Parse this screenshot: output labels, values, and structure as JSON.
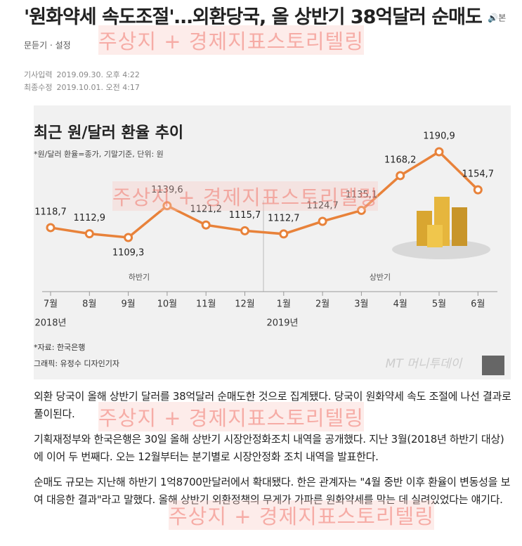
{
  "headline": "'원화약세 속도조절'…외환당국, 올 상반기 38억달러 순매도",
  "tools": {
    "listen": "본문듣기",
    "settings": "설정"
  },
  "meta": [
    {
      "label": "기사입력",
      "value": "2019.09.30. 오후 4:22"
    },
    {
      "label": "최종수정",
      "value": "2019.10.01. 오전 4:17"
    }
  ],
  "chart_data": {
    "type": "line",
    "title": "최근 원/달러 환율 추이",
    "subtitle": "*원/달러 환율=종가, 기말기준, 단위: 원",
    "categories": [
      "7월",
      "8월",
      "9월",
      "10월",
      "11월",
      "12월",
      "1월",
      "2월",
      "3월",
      "4월",
      "5월",
      "6월"
    ],
    "values": [
      1118.7,
      1112.9,
      1109.3,
      1139.6,
      1121.2,
      1115.7,
      1112.7,
      1124.7,
      1135.1,
      1168.2,
      1190.9,
      1154.7
    ],
    "value_labels": [
      "1118,7",
      "1112,9",
      "1109,3",
      "1139,6",
      "1121,2",
      "1115,7",
      "1112,7",
      "1124,7",
      "1135,1",
      "1168,2",
      "1190,9",
      "1154,7"
    ],
    "color": "#e8823a",
    "years": [
      "2018년",
      "2019년"
    ],
    "periods": [
      "하반기",
      "상반기"
    ],
    "source": "*자료: 한국은행",
    "credit": "그래픽: 유정수 디자인기자",
    "logo": "MT 머니투데이"
  },
  "watermark": "주상지 + 경제지표스토리텔링",
  "paragraphs": [
    "외환 당국이 올해 상반기 달러를 38억달러 순매도한 것으로 집계됐다. 당국이 원화약세 속도 조절에 나선 결과로 풀이된다.",
    "기획재정부와 한국은행은 30일 올해 상반기 시장안정화조치 내역을 공개했다. 지난 3월(2018년 하반기 대상)에 이어 두 번째다. 오는 12월부터는 분기별로 시장안정화 조치 내역을 발표한다.",
    "순매도 규모는 지난해 하반기 1억8700만달러에서 확대됐다. 한은 관계자는 \"4월 중반 이후 환율이 변동성을 보여 대응한 결과\"라고 말했다. 올해 상반기 외환정책의 무게가 가파른 원화약세를 막는 데 실려있었다는 얘기다."
  ]
}
